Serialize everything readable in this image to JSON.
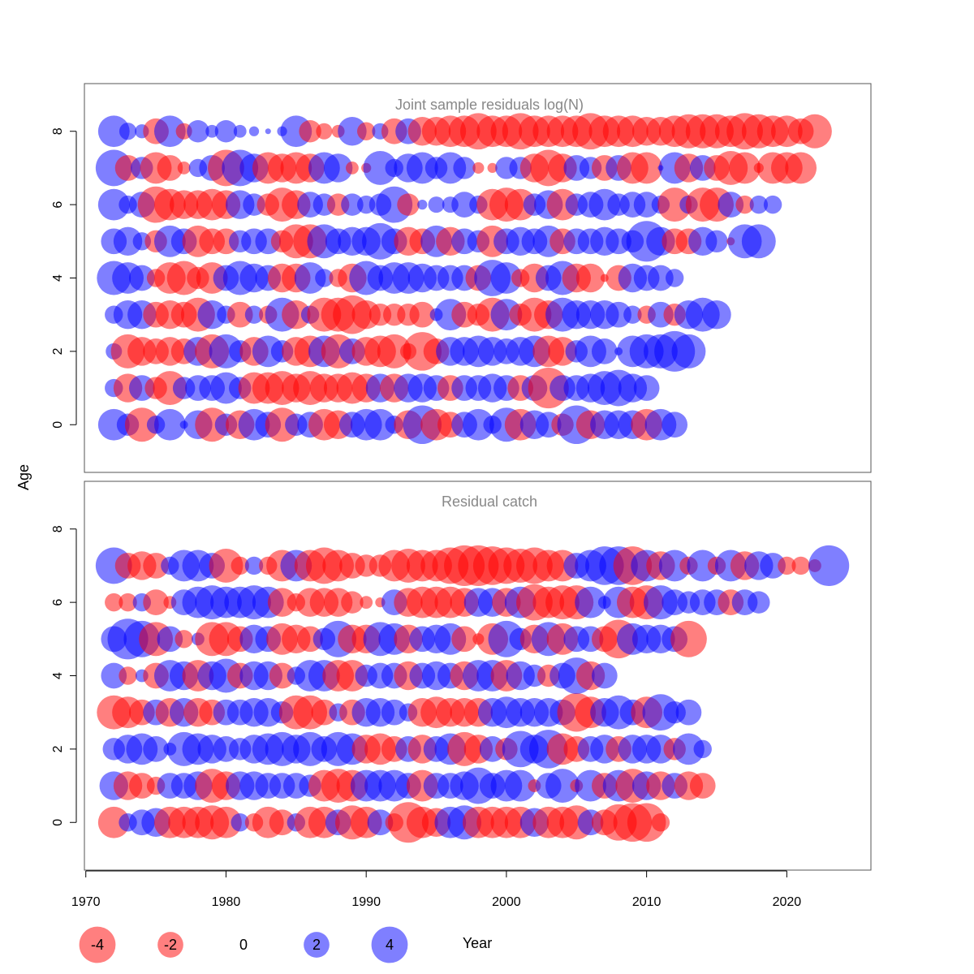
{
  "colors": {
    "positive": "#0000ff",
    "negative": "#ff0000",
    "frame": "#555555",
    "title": "#888888"
  },
  "axes": {
    "x_label": "Year",
    "y_label": "Age",
    "x_ticks": [
      "1970",
      "1980",
      "1990",
      "2000",
      "2010",
      "2020"
    ],
    "y_ticks": [
      "0",
      "2",
      "4",
      "6",
      "8"
    ],
    "x_range": [
      1969.9,
      2026.0
    ],
    "y_range": [
      -1.3,
      9.3
    ]
  },
  "legend": {
    "entries": [
      {
        "label": "-4",
        "value": -4
      },
      {
        "label": "-2",
        "value": -2
      },
      {
        "label": "0",
        "value": 0
      },
      {
        "label": "2",
        "value": 2
      },
      {
        "label": "4",
        "value": 4
      }
    ]
  },
  "chart_data": [
    {
      "type": "scatter",
      "subtype": "bubble",
      "title": "Joint sample residuals log(N)",
      "xlabel": "Year",
      "ylabel": "Age",
      "x_start": 1972,
      "ages": [
        0,
        1,
        2,
        3,
        4,
        5,
        6,
        7,
        8
      ],
      "residuals": {
        "8": [
          3.0,
          0.9,
          0.6,
          -2.0,
          3.0,
          -0.8,
          1.5,
          0.5,
          1.5,
          0.5,
          0.3,
          0.1,
          0.3,
          3.0,
          -1.5,
          -0.8,
          -0.5,
          2.5,
          -1.0,
          0.8,
          -2.0,
          2.0,
          -2.5,
          -2.5,
          -3.0,
          -3.0,
          -4.0,
          -3.0,
          -3.0,
          -4.0,
          -3.0,
          -3.0,
          -3.0,
          -3.0,
          -4.0,
          -3.0,
          -3.0,
          -3.0,
          -2.5,
          -2.5,
          -3.0,
          -3.5,
          -3.5,
          -3.5,
          -3.0,
          -4.0,
          -3.5,
          -3.0,
          -3.0,
          -2.0,
          -3.5
        ],
        "7": [
          4.0,
          -2.0,
          1.5,
          -3.0,
          -2.0,
          -0.5,
          1.0,
          2.0,
          -4.0,
          4.0,
          2.5,
          -3.0,
          -2.5,
          -3.0,
          -2.5,
          3.0,
          2.5,
          -0.5,
          -0.3,
          3.5,
          1.0,
          2.5,
          3.0,
          1.5,
          3.0,
          1.5,
          -0.4,
          -0.3,
          1.5,
          1.5,
          -2.5,
          -4.0,
          -2.5,
          2.0,
          1.5,
          -2.0,
          2.0,
          -3.0,
          -3.0,
          0.1,
          3.0,
          -2.5,
          2.0,
          -2.0,
          -3.5,
          -3.0,
          -0.3,
          -3.0,
          -3.0,
          -3.0
        ],
        "6": [
          3.0,
          1.0,
          2.0,
          -4.0,
          -3.0,
          -2.5,
          -2.5,
          -3.0,
          -2.5,
          2.5,
          1.5,
          -1.5,
          -3.5,
          -2.5,
          2.0,
          1.5,
          -1.5,
          1.5,
          1.0,
          1.5,
          4.0,
          -1.5,
          0.3,
          0.8,
          0.8,
          2.0,
          1.0,
          -3.0,
          -3.5,
          -3.0,
          1.5,
          2.5,
          -3.0,
          1.5,
          2.0,
          3.0,
          1.5,
          2.0,
          2.0,
          1.0,
          -3.5,
          1.0,
          -3.5,
          -3.5,
          2.0,
          -1.0,
          1.0,
          1.0
        ],
        "5": [
          2.0,
          2.5,
          1.0,
          -1.5,
          3.0,
          2.0,
          -3.0,
          -2.0,
          -2.0,
          1.5,
          2.0,
          2.0,
          -1.5,
          -3.5,
          -3.5,
          3.5,
          2.0,
          2.5,
          2.5,
          4.0,
          2.0,
          -2.5,
          -2.0,
          3.0,
          -2.5,
          2.0,
          1.5,
          -3.0,
          2.0,
          2.5,
          2.0,
          3.0,
          -2.0,
          2.0,
          2.0,
          2.5,
          2.0,
          1.5,
          5.0,
          2.5,
          -2.0,
          -2.0,
          2.5,
          1.5,
          -0.2,
          3.5,
          3.5
        ],
        "4": [
          3.5,
          3.0,
          2.0,
          -1.0,
          -3.0,
          -3.5,
          -1.5,
          -3.0,
          2.0,
          3.5,
          2.5,
          2.0,
          -2.5,
          -2.5,
          3.0,
          1.0,
          -1.0,
          -2.5,
          3.5,
          2.0,
          3.0,
          3.0,
          2.5,
          2.0,
          2.0,
          2.0,
          -2.0,
          4.0,
          3.0,
          -1.0,
          -2.5,
          2.0,
          3.5,
          -2.5,
          -2.5,
          -0.2,
          -2.0,
          2.5,
          2.0,
          2.0,
          1.0
        ],
        "3": [
          1.0,
          2.5,
          2.5,
          -2.0,
          -2.5,
          -2.0,
          -3.5,
          2.5,
          1.0,
          -2.0,
          1.0,
          -1.0,
          3.5,
          -2.5,
          1.0,
          -3.5,
          -3.5,
          -4.5,
          -2.5,
          -1.5,
          -1.5,
          -1.5,
          -2.0,
          0.5,
          3.0,
          -2.0,
          -1.5,
          -3.5,
          3.0,
          -1.5,
          -3.5,
          -2.5,
          3.5,
          2.5,
          2.5,
          2.5,
          2.0,
          1.0,
          -1.0,
          2.0,
          -1.5,
          2.5,
          3.5,
          2.5
        ],
        "2": [
          0.8,
          -3.5,
          -2.5,
          -2.0,
          -2.5,
          -2.0,
          2.5,
          -3.5,
          3.5,
          1.5,
          -2.5,
          3.0,
          1.5,
          -2.5,
          -3.0,
          3.0,
          -3.5,
          2.0,
          -2.5,
          -3.0,
          -3.5,
          -0.8,
          -4.5,
          -2.0,
          2.5,
          2.5,
          3.0,
          2.5,
          2.0,
          2.5,
          3.0,
          -3.0,
          -2.5,
          1.5,
          3.0,
          2.0,
          0.2,
          3.0,
          3.5,
          3.5,
          5.0,
          3.5
        ],
        "1": [
          1.0,
          -2.5,
          2.0,
          -1.5,
          -3.5,
          1.5,
          2.0,
          2.0,
          3.0,
          1.5,
          -3.0,
          -3.0,
          -3.5,
          -2.5,
          -3.5,
          -2.5,
          -2.5,
          -3.0,
          -2.5,
          2.5,
          -2.5,
          2.5,
          2.5,
          2.0,
          -2.0,
          2.0,
          2.0,
          2.5,
          2.0,
          -2.0,
          2.0,
          -5.0,
          2.0,
          2.0,
          2.5,
          3.5,
          4.0,
          2.5,
          2.0
        ],
        "0": [
          3.0,
          1.5,
          -3.5,
          1.0,
          3.0,
          0.2,
          2.5,
          -3.5,
          1.5,
          -2.5,
          3.0,
          2.0,
          -3.5,
          1.5,
          2.0,
          -3.0,
          -2.5,
          2.0,
          3.0,
          3.0,
          1.0,
          -2.5,
          4.5,
          -3.0,
          -2.0,
          2.0,
          3.0,
          1.0,
          3.5,
          -3.0,
          2.5,
          2.0,
          -1.5,
          4.5,
          -2.5,
          2.5,
          2.5,
          2.5,
          -3.0,
          3.0,
          2.0
        ]
      }
    },
    {
      "type": "scatter",
      "subtype": "bubble",
      "title": "Residual catch",
      "xlabel": "Year",
      "ylabel": "Age",
      "x_start": 1972,
      "ages": [
        0,
        1,
        2,
        3,
        4,
        5,
        6,
        7,
        8
      ],
      "residuals": {
        "7": [
          4.0,
          -2.0,
          -2.5,
          -2.0,
          1.0,
          3.0,
          3.0,
          2.0,
          -3.5,
          -1.0,
          1.0,
          -1.0,
          -3.0,
          3.0,
          -3.0,
          -4.0,
          -3.0,
          -2.0,
          -1.5,
          -1.5,
          -3.0,
          -3.5,
          -3.0,
          -3.0,
          -4.0,
          -5.0,
          -5.0,
          -4.5,
          -4.0,
          -3.5,
          -4.0,
          -3.0,
          -3.0,
          2.0,
          3.0,
          4.5,
          4.5,
          -4.5,
          3.0,
          -2.5,
          3.0,
          -1.0,
          3.0,
          -1.0,
          3.0,
          -2.5,
          2.5,
          2.0,
          -1.0,
          -1.0,
          -0.5,
          5.0
        ],
        "6": [
          -1.0,
          -1.0,
          1.0,
          -2.0,
          -0.5,
          2.0,
          3.0,
          3.5,
          3.0,
          3.0,
          3.5,
          3.0,
          -2.5,
          -1.0,
          -2.5,
          -2.5,
          -2.5,
          -1.5,
          -0.5,
          -0.3,
          2.0,
          -2.5,
          -3.0,
          -3.0,
          -3.0,
          -2.5,
          2.5,
          2.5,
          -2.5,
          3.0,
          -4.0,
          -3.0,
          -3.5,
          -3.5,
          3.0,
          0.5,
          3.0,
          -3.0,
          -3.5,
          3.5,
          2.0,
          1.5,
          2.0,
          2.0,
          -2.0,
          2.0,
          1.5
        ],
        "5": [
          2.0,
          5.0,
          4.0,
          -3.5,
          2.0,
          -1.0,
          0.5,
          -3.5,
          -3.5,
          -2.0,
          2.5,
          2.0,
          -3.0,
          -2.5,
          -2.0,
          1.5,
          4.0,
          -2.5,
          -2.5,
          3.5,
          3.0,
          -2.5,
          2.0,
          2.5,
          3.0,
          -2.0,
          -0.4,
          -3.0,
          4.0,
          1.5,
          -2.5,
          3.5,
          -3.0,
          2.0,
          2.0,
          -2.0,
          -4.5,
          3.0,
          2.5,
          2.5,
          2.0,
          -4.0
        ],
        "4": [
          2.0,
          -1.0,
          0.5,
          -2.0,
          3.0,
          2.5,
          -3.0,
          2.5,
          3.5,
          -2.0,
          2.5,
          2.5,
          -2.0,
          1.0,
          3.0,
          3.0,
          -3.0,
          -3.0,
          1.5,
          2.0,
          2.0,
          -2.5,
          2.0,
          2.5,
          2.0,
          -2.5,
          3.0,
          3.0,
          -3.0,
          2.5,
          1.5,
          -1.5,
          2.0,
          4.0,
          -2.5,
          2.0
        ],
        "3": [
          -3.5,
          -3.0,
          -2.0,
          2.0,
          -2.5,
          2.5,
          -2.5,
          -2.0,
          2.0,
          2.0,
          2.5,
          2.5,
          1.5,
          -3.5,
          -3.5,
          -2.0,
          1.0,
          -2.0,
          2.5,
          2.5,
          2.0,
          1.0,
          -2.5,
          -3.0,
          -2.5,
          -2.5,
          -2.5,
          2.5,
          3.0,
          2.5,
          2.5,
          2.5,
          2.0,
          -4.5,
          -3.0,
          2.5,
          3.5,
          2.0,
          -3.0,
          4.0,
          1.5,
          2.0
        ],
        "2": [
          1.5,
          2.5,
          3.0,
          2.0,
          0.5,
          3.5,
          3.0,
          2.5,
          2.0,
          1.5,
          2.5,
          3.0,
          3.5,
          2.5,
          3.5,
          2.0,
          3.5,
          3.0,
          -2.5,
          -3.0,
          -2.0,
          2.0,
          -2.5,
          2.0,
          3.0,
          -3.5,
          -2.5,
          2.0,
          -1.5,
          4.0,
          2.5,
          4.5,
          -3.0,
          -2.0,
          2.0,
          2.5,
          -2.0,
          2.5,
          2.5,
          2.5,
          -1.5,
          3.0,
          1.0
        ],
        "1": [
          2.5,
          -2.5,
          -2.0,
          -1.0,
          2.0,
          2.0,
          2.5,
          -3.5,
          -2.5,
          2.5,
          2.5,
          2.0,
          2.0,
          2.0,
          1.5,
          -3.0,
          -3.5,
          -3.0,
          3.0,
          3.0,
          3.0,
          2.0,
          -3.0,
          2.0,
          2.0,
          2.5,
          4.0,
          2.0,
          3.0,
          3.0,
          -0.5,
          2.0,
          3.5,
          -0.5,
          3.0,
          -2.0,
          3.0,
          -3.5,
          2.5,
          -2.5,
          2.0,
          -2.5,
          -2.0
        ],
        "0": [
          -3.0,
          1.0,
          2.0,
          2.5,
          -3.0,
          -3.0,
          -3.0,
          -3.5,
          -3.0,
          1.0,
          -1.0,
          -3.0,
          -2.0,
          1.0,
          -3.0,
          -3.0,
          2.0,
          -3.5,
          -3.0,
          2.0,
          -1.0,
          -5.0,
          -3.0,
          -2.5,
          3.0,
          3.5,
          -3.0,
          -3.0,
          -3.0,
          -3.0,
          2.5,
          -3.0,
          -3.0,
          -3.5,
          2.0,
          -2.0,
          -4.0,
          -4.5,
          -4.5,
          -1.0
        ]
      }
    }
  ]
}
